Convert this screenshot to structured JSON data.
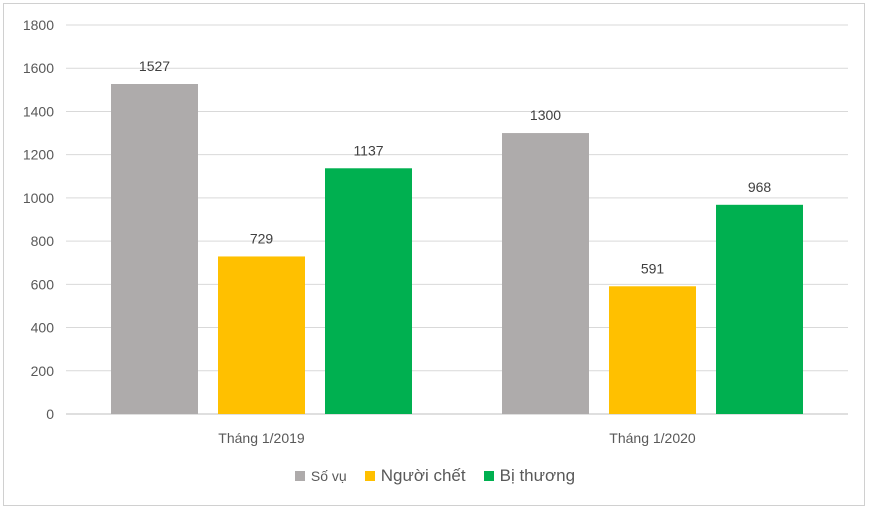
{
  "chart_data": {
    "type": "bar",
    "categories": [
      "Tháng 1/2019",
      "Tháng 1/2020"
    ],
    "series": [
      {
        "name": "Số vụ",
        "values": [
          1527,
          1300
        ],
        "color": "#aeabab"
      },
      {
        "name": "Người chết",
        "values": [
          729,
          591
        ],
        "color": "#ffc000"
      },
      {
        "name": "Bị thương",
        "values": [
          1137,
          968
        ],
        "color": "#00b050"
      }
    ],
    "title": "",
    "xlabel": "",
    "ylabel": "",
    "ylim": [
      0,
      1800
    ],
    "yticks": [
      0,
      200,
      400,
      600,
      800,
      1000,
      1200,
      1400,
      1600,
      1800
    ],
    "grid": true,
    "legend_position": "bottom",
    "data_labels": true
  }
}
